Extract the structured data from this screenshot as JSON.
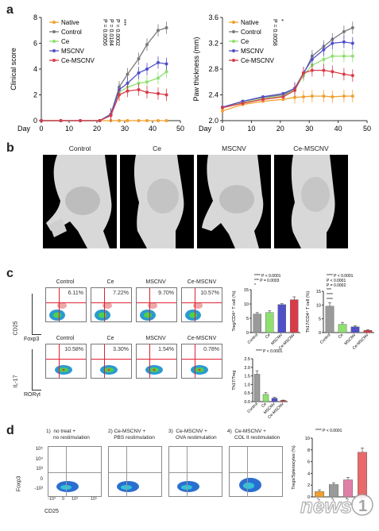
{
  "panels": {
    "a": "a",
    "b": "b",
    "c": "c",
    "d": "d"
  },
  "chart_data": [
    {
      "type": "line",
      "ylabel": "Clinical score",
      "xlabel": "Day",
      "x": [
        0,
        7,
        14,
        21,
        25,
        28,
        31,
        35,
        38,
        42,
        45
      ],
      "ylim": [
        0,
        8
      ],
      "xlim": [
        0,
        50
      ],
      "yticks": [
        "0",
        "2",
        "4",
        "6",
        "8"
      ],
      "xticks": [
        "0",
        "10",
        "20",
        "30",
        "40",
        "50"
      ],
      "series": [
        {
          "name": "Native",
          "color": "#f0a030",
          "values": [
            0,
            0,
            0,
            0,
            0,
            0,
            0,
            0,
            0,
            0,
            0
          ]
        },
        {
          "name": "Control",
          "color": "#7a7a7a",
          "values": [
            0,
            0,
            0,
            0,
            0.5,
            2.6,
            3.6,
            4.8,
            5.9,
            7.0,
            7.2
          ]
        },
        {
          "name": "Ce",
          "color": "#8fe070",
          "values": [
            0,
            0,
            0,
            0,
            0.4,
            2.2,
            2.6,
            2.9,
            3.0,
            3.3,
            3.8
          ]
        },
        {
          "name": "MSCNV",
          "color": "#5050c8",
          "values": [
            0,
            0,
            0,
            0,
            0.5,
            2.4,
            2.9,
            3.7,
            4.0,
            4.5,
            4.4
          ]
        },
        {
          "name": "Ce-MSCNV",
          "color": "#d83c48",
          "values": [
            0,
            0,
            0,
            0,
            0.4,
            2.0,
            2.3,
            2.4,
            2.2,
            2.1,
            2.0
          ]
        }
      ],
      "annotations": [
        "P = 0.0056",
        "P = 0.0184",
        "P = 0.0002",
        "***"
      ]
    },
    {
      "type": "line",
      "ylabel": "Paw thickness (mm)",
      "xlabel": "Day",
      "x": [
        0,
        7,
        14,
        21,
        25,
        28,
        31,
        35,
        38,
        42,
        45
      ],
      "ylim": [
        2.0,
        3.6
      ],
      "xlim": [
        0,
        50
      ],
      "yticks": [
        "2.0",
        "2.4",
        "2.8",
        "3.2",
        "3.6"
      ],
      "xticks": [
        "0",
        "10",
        "20",
        "30",
        "40",
        "50"
      ],
      "series": [
        {
          "name": "Native",
          "color": "#f0a030",
          "values": [
            2.15,
            2.25,
            2.3,
            2.33,
            2.36,
            2.37,
            2.38,
            2.38,
            2.37,
            2.38,
            2.38
          ]
        },
        {
          "name": "Control",
          "color": "#7a7a7a",
          "values": [
            2.2,
            2.3,
            2.36,
            2.4,
            2.5,
            2.72,
            3.0,
            3.15,
            3.26,
            3.38,
            3.44
          ]
        },
        {
          "name": "Ce",
          "color": "#8fe070",
          "values": [
            2.2,
            2.28,
            2.34,
            2.38,
            2.48,
            2.7,
            2.86,
            2.95,
            3.0,
            3.0,
            3.0
          ]
        },
        {
          "name": "MSCNV",
          "color": "#5050c8",
          "values": [
            2.21,
            2.3,
            2.37,
            2.42,
            2.5,
            2.74,
            2.95,
            3.1,
            3.2,
            3.22,
            3.2
          ]
        },
        {
          "name": "Ce-MSCNV",
          "color": "#d83c48",
          "values": [
            2.2,
            2.27,
            2.33,
            2.37,
            2.47,
            2.74,
            2.78,
            2.78,
            2.76,
            2.72,
            2.7
          ]
        }
      ],
      "annotations": [
        "P = 0.0058",
        "*"
      ]
    },
    {
      "type": "bar",
      "ylabel": "Treg/CD4⁺ T cell (%)",
      "categories": [
        "Control",
        "Ce",
        "MSCNV",
        "Ce-MSCNV"
      ],
      "values": [
        6.5,
        7.0,
        9.8,
        11.5
      ],
      "errors": [
        0.5,
        0.6,
        0.3,
        1.0
      ],
      "colors": [
        "#9a9a9a",
        "#8fe070",
        "#5050c8",
        "#d83c48"
      ],
      "ylim": [
        0,
        15
      ],
      "yticks": [
        "0",
        "5",
        "10",
        "15"
      ],
      "annotations": [
        "**** P < 0.0001",
        "*** P = 0.0003",
        "*"
      ]
    },
    {
      "type": "bar",
      "ylabel": "Th17/CD4⁺ T cell (%)",
      "categories": [
        "Control",
        "Ce",
        "MSCNV",
        "Ce-MSCNV"
      ],
      "values": [
        9.6,
        3.0,
        2.1,
        0.8
      ],
      "errors": [
        1.2,
        0.7,
        0.4,
        0.2
      ],
      "colors": [
        "#9a9a9a",
        "#8fe070",
        "#5050c8",
        "#d83c48"
      ],
      "ylim": [
        0,
        15
      ],
      "yticks": [
        "0",
        "5",
        "10",
        "15"
      ],
      "annotations": [
        "**** P < 0.0001",
        "P < 0.0001",
        "P = 0.0002",
        "***",
        "****",
        "****"
      ]
    },
    {
      "type": "bar",
      "ylabel": "Th17/Treg",
      "categories": [
        "Control",
        "Ce",
        "MSCNV",
        "Ce-MSCNV"
      ],
      "values": [
        1.6,
        0.42,
        0.2,
        0.07
      ],
      "errors": [
        0.2,
        0.1,
        0.05,
        0.02
      ],
      "colors": [
        "#9a9a9a",
        "#8fe070",
        "#5050c8",
        "#d83c48"
      ],
      "ylim": [
        0,
        2.5
      ],
      "yticks": [
        "0.0",
        "0.5",
        "1.0",
        "1.5",
        "2.0",
        "2.5"
      ],
      "annotations": [
        "**** P < 0.0001"
      ]
    },
    {
      "type": "bar",
      "ylabel": "Tregs/Splenocytes (%)",
      "categories": [
        "1",
        "2",
        "3",
        "4"
      ],
      "values": [
        0.9,
        2.1,
        2.9,
        7.6
      ],
      "errors": [
        0.3,
        0.3,
        0.4,
        0.7
      ],
      "colors": [
        "#f0a030",
        "#9a9a9a",
        "#e080a8",
        "#e86a6a"
      ],
      "ylim": [
        0,
        10
      ],
      "yticks": [
        "0",
        "2",
        "4",
        "6",
        "8",
        "10"
      ],
      "annotations": [
        "**** P < 0.0001"
      ]
    }
  ],
  "ct": {
    "labels": [
      "Control",
      "Ce",
      "MSCNV",
      "Ce-MSCNV"
    ]
  },
  "flow_c": {
    "groups": [
      "Control",
      "Ce",
      "MSCNV",
      "Ce-MSCNV"
    ],
    "row1_pct": [
      "6.11%",
      "7.22%",
      "9.70%",
      "10.57%"
    ],
    "row2_pct": [
      "10.58%",
      "3.30%",
      "1.54%",
      "0.78%"
    ],
    "row1_y": "CD25",
    "row1_x": "Foxp3",
    "row2_y": "IL-17",
    "row2_x": "RORγt"
  },
  "flow_d": {
    "titles": [
      "1)  no treat +\n     no restimulation",
      "2) Ce-MSCNV +\n    PBS restimulation",
      "3)  Ce-MSCNV +\n     OVA restimulation",
      "4)  Ce-MSCNV +\n     COL II restimulation"
    ],
    "y_axis": "Foxp3",
    "x_axis": "CD25",
    "yticks": [
      "10⁵",
      "10⁴",
      "10³",
      "0",
      "-10³"
    ],
    "xticks": [
      "-10³",
      "0",
      "10³",
      "10⁵"
    ]
  },
  "watermark": "news1"
}
